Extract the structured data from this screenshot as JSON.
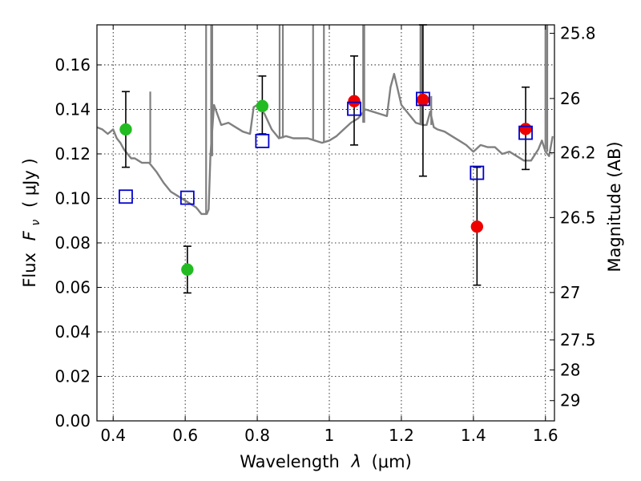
{
  "chart_data": {
    "type": "scatter",
    "xlabel": "Wavelength",
    "xlabel_symbol": "λ",
    "xlabel_unit": "(μm)",
    "ylabel": "Flux",
    "ylabel_symbol": "F",
    "ylabel_subscript": "ν",
    "ylabel_unit": "( μJy )",
    "y2label": "Magnitude (AB)",
    "xlim": [
      0.355,
      1.625
    ],
    "ylim": [
      0.0,
      0.178
    ],
    "x_ticks": [
      0.4,
      0.6,
      0.8,
      1.0,
      1.2,
      1.4,
      1.6
    ],
    "x_tick_labels": [
      "0.4",
      "0.6",
      "0.8",
      "1",
      "1.2",
      "1.4",
      "1.6"
    ],
    "y_ticks": [
      0.0,
      0.02,
      0.04,
      0.06,
      0.08,
      0.1,
      0.12,
      0.14,
      0.16
    ],
    "y_tick_labels": [
      "0.00",
      "0.02",
      "0.04",
      "0.06",
      "0.08",
      "0.10",
      "0.12",
      "0.14",
      "0.16"
    ],
    "y2_ticks": [
      {
        "label": "25.8",
        "flux": 0.1742
      },
      {
        "label": "26",
        "flux": 0.1449
      },
      {
        "label": "26.2",
        "flux": 0.1205
      },
      {
        "label": "26.5",
        "flux": 0.0914
      },
      {
        "label": "27",
        "flux": 0.0577
      },
      {
        "label": "27.5",
        "flux": 0.0364
      },
      {
        "label": "28",
        "flux": 0.0229
      },
      {
        "label": "29",
        "flux": 0.0091
      }
    ],
    "grid": true,
    "colors": {
      "green": "#22bb22",
      "red": "#ee0000",
      "blue": "#0000cc",
      "model": "#808080",
      "errorbar": "#000000"
    },
    "series": [
      {
        "name": "observed-green",
        "marker": "circle",
        "points": [
          {
            "x": 0.435,
            "y": 0.131,
            "yerr_low": 0.017,
            "yerr_high": 0.017
          },
          {
            "x": 0.606,
            "y": 0.068,
            "yerr_low": 0.0105,
            "yerr_high": 0.0105
          },
          {
            "x": 0.814,
            "y": 0.1415,
            "yerr_low": 0.0125,
            "yerr_high": 0.0135
          }
        ]
      },
      {
        "name": "observed-red",
        "marker": "circle",
        "points": [
          {
            "x": 1.069,
            "y": 0.1437,
            "yerr_low": 0.0197,
            "yerr_high": 0.0203
          },
          {
            "x": 1.26,
            "y": 0.1443,
            "yerr_low": 0.0343,
            "yerr_high": 0.0347
          },
          {
            "x": 1.41,
            "y": 0.0873,
            "yerr_low": 0.0263,
            "yerr_high": 0.0267
          },
          {
            "x": 1.545,
            "y": 0.1312,
            "yerr_low": 0.0182,
            "yerr_high": 0.0188
          }
        ]
      },
      {
        "name": "model-photometry",
        "marker": "open-square",
        "points": [
          {
            "x": 0.435,
            "y": 0.1008
          },
          {
            "x": 0.606,
            "y": 0.1003
          },
          {
            "x": 0.814,
            "y": 0.1258
          },
          {
            "x": 1.069,
            "y": 0.1403
          },
          {
            "x": 1.26,
            "y": 0.1447
          },
          {
            "x": 1.41,
            "y": 0.1115
          },
          {
            "x": 1.545,
            "y": 0.1295
          }
        ]
      }
    ],
    "model_spectrum": {
      "x": [
        0.355,
        0.37,
        0.385,
        0.4,
        0.41,
        0.42,
        0.43,
        0.44,
        0.45,
        0.46,
        0.47,
        0.48,
        0.49,
        0.5,
        0.52,
        0.54,
        0.56,
        0.58,
        0.6,
        0.62,
        0.63,
        0.635,
        0.64,
        0.645,
        0.65,
        0.655,
        0.66,
        0.665,
        0.67,
        0.68,
        0.7,
        0.72,
        0.74,
        0.76,
        0.78,
        0.79,
        0.8,
        0.82,
        0.84,
        0.86,
        0.88,
        0.9,
        0.92,
        0.94,
        0.96,
        0.98,
        1.0,
        1.02,
        1.04,
        1.06,
        1.08,
        1.1,
        1.12,
        1.14,
        1.16,
        1.17,
        1.18,
        1.19,
        1.2,
        1.22,
        1.24,
        1.26,
        1.27,
        1.28,
        1.29,
        1.3,
        1.32,
        1.34,
        1.36,
        1.38,
        1.4,
        1.42,
        1.44,
        1.46,
        1.48,
        1.5,
        1.52,
        1.54,
        1.56,
        1.58,
        1.59,
        1.6,
        1.61,
        1.62
      ],
      "y": [
        0.132,
        0.131,
        0.129,
        0.131,
        0.127,
        0.125,
        0.122,
        0.12,
        0.118,
        0.118,
        0.117,
        0.116,
        0.116,
        0.116,
        0.112,
        0.107,
        0.103,
        0.101,
        0.099,
        0.097,
        0.096,
        0.095,
        0.094,
        0.093,
        0.093,
        0.093,
        0.093,
        0.095,
        0.119,
        0.142,
        0.133,
        0.134,
        0.132,
        0.13,
        0.129,
        0.141,
        0.142,
        0.138,
        0.131,
        0.127,
        0.128,
        0.127,
        0.127,
        0.127,
        0.126,
        0.125,
        0.126,
        0.128,
        0.131,
        0.134,
        0.136,
        0.14,
        0.139,
        0.138,
        0.137,
        0.15,
        0.156,
        0.149,
        0.142,
        0.138,
        0.134,
        0.133,
        0.133,
        0.139,
        0.132,
        0.131,
        0.13,
        0.128,
        0.126,
        0.124,
        0.121,
        0.124,
        0.123,
        0.123,
        0.12,
        0.121,
        0.119,
        0.117,
        0.117,
        0.122,
        0.126,
        0.121,
        0.119,
        0.128
      ]
    },
    "model_spikes": [
      {
        "x": 0.503,
        "base": 0.116,
        "top": 0.148
      },
      {
        "x": 0.658,
        "base": 0.093,
        "top": 0.178
      },
      {
        "x": 0.672,
        "base": 0.119,
        "top": 0.178
      },
      {
        "x": 0.675,
        "base": 0.119,
        "top": 0.178
      },
      {
        "x": 0.862,
        "base": 0.127,
        "top": 0.178
      },
      {
        "x": 0.871,
        "base": 0.127,
        "top": 0.178
      },
      {
        "x": 0.955,
        "base": 0.126,
        "top": 0.178
      },
      {
        "x": 0.985,
        "base": 0.125,
        "top": 0.178
      },
      {
        "x": 1.094,
        "base": 0.134,
        "top": 0.178
      },
      {
        "x": 1.097,
        "base": 0.134,
        "top": 0.178
      },
      {
        "x": 1.253,
        "base": 0.133,
        "top": 0.178
      },
      {
        "x": 1.256,
        "base": 0.133,
        "top": 0.178
      },
      {
        "x": 1.283,
        "base": 0.133,
        "top": 0.146
      },
      {
        "x": 1.6,
        "base": 0.122,
        "top": 0.178
      },
      {
        "x": 1.605,
        "base": 0.121,
        "top": 0.178
      }
    ]
  }
}
